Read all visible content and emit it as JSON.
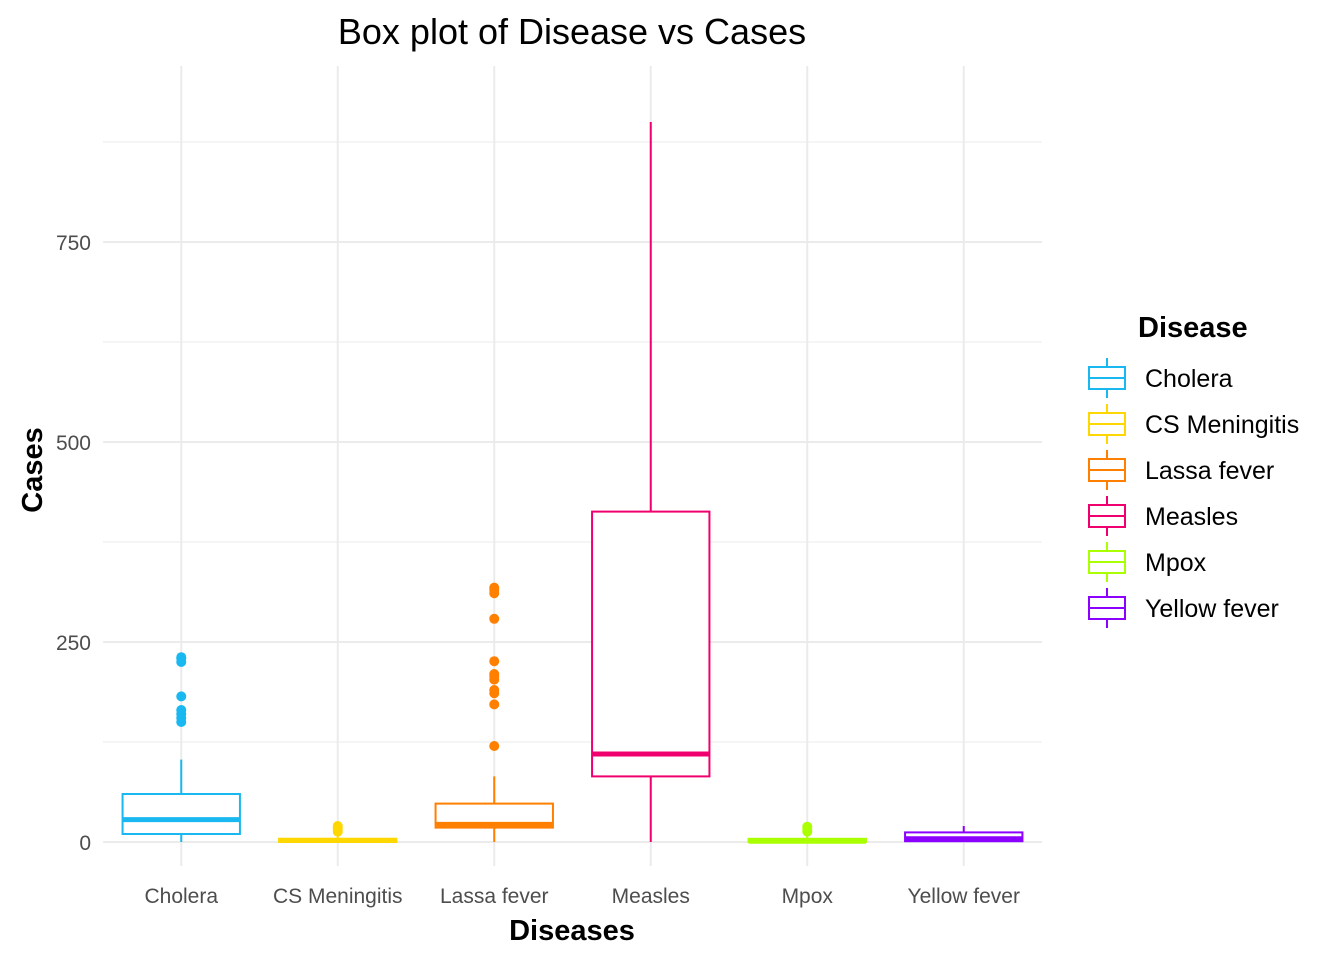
{
  "chart_data": {
    "type": "box",
    "title": "Box plot of Disease vs Cases",
    "xlabel": "Diseases",
    "ylabel": "Cases",
    "ylim": [
      -30,
      970
    ],
    "yticks": [
      0,
      250,
      500,
      750
    ],
    "ytick_labels": [
      "0",
      "250",
      "500",
      "750"
    ],
    "grid": true,
    "legend": {
      "title": "Disease",
      "position": "right"
    },
    "categories": [
      "Cholera",
      "CS Meningitis",
      "Lassa fever",
      "Measles",
      "Mpox",
      "Yellow fever"
    ],
    "colors": [
      "#1ab8f0",
      "#ffd700",
      "#ff7f00",
      "#f0006e",
      "#aaff00",
      "#8b00ff"
    ],
    "boxes": [
      {
        "min": 0,
        "q1": 10,
        "median": 28,
        "q3": 60,
        "max": 103,
        "outliers": [
          150,
          155,
          160,
          165,
          182,
          225,
          229,
          231
        ]
      },
      {
        "min": 0,
        "q1": 0,
        "median": 2,
        "q3": 4,
        "max": 10,
        "outliers": [
          13,
          16,
          18,
          20
        ]
      },
      {
        "min": 0,
        "q1": 18,
        "median": 22,
        "q3": 48,
        "max": 82,
        "outliers": [
          120,
          172,
          186,
          190,
          203,
          207,
          210,
          226,
          279,
          311,
          315,
          318
        ]
      },
      {
        "min": 0,
        "q1": 82,
        "median": 110,
        "q3": 413,
        "max": 900,
        "outliers": []
      },
      {
        "min": 0,
        "q1": 0,
        "median": 1,
        "q3": 4,
        "max": 10,
        "outliers": [
          13,
          16,
          19
        ]
      },
      {
        "min": 0,
        "q1": 1,
        "median": 4,
        "q3": 12,
        "max": 20,
        "outliers": []
      }
    ]
  }
}
